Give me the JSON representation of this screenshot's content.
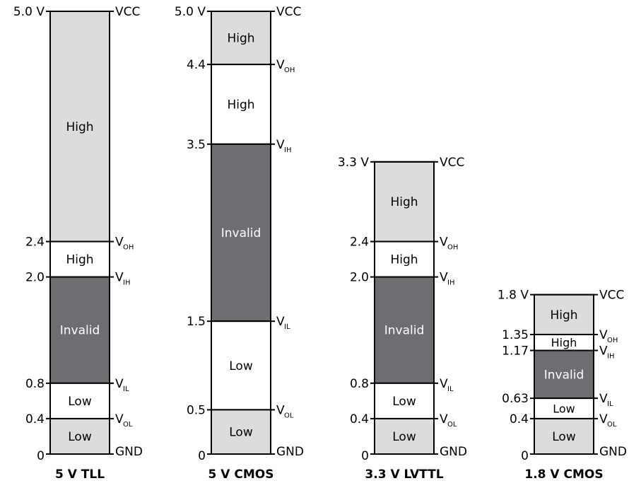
{
  "colors": {
    "high": "#dcdcde",
    "invalid": "#6d6e71",
    "low": "#ffffff",
    "stroke": "#000000",
    "invalid_text": "#ffffff"
  },
  "columns": [
    {
      "title": "5 V TLL",
      "top_label": "5.0 V",
      "bottom_label": "0",
      "vcc_label": "VCC",
      "gnd_label": "GND",
      "max_v": 5.0,
      "segments": [
        {
          "from": 2.4,
          "to": 5.0,
          "label": "High",
          "kind": "high"
        },
        {
          "from": 2.0,
          "to": 2.4,
          "label": "High",
          "kind": "low"
        },
        {
          "from": 0.8,
          "to": 2.0,
          "label": "Invalid",
          "kind": "invalid"
        },
        {
          "from": 0.4,
          "to": 0.8,
          "label": "Low",
          "kind": "low"
        },
        {
          "from": 0.0,
          "to": 0.4,
          "label": "Low",
          "kind": "high"
        }
      ],
      "thresholds": [
        {
          "v": 2.4,
          "left": "2.4",
          "main": "V",
          "sub": "OH"
        },
        {
          "v": 2.0,
          "left": "2.0",
          "main": "V",
          "sub": "IH"
        },
        {
          "v": 0.8,
          "left": "0.8",
          "main": "V",
          "sub": "IL"
        },
        {
          "v": 0.4,
          "left": "0.4",
          "main": "V",
          "sub": "OL"
        }
      ]
    },
    {
      "title": "5 V CMOS",
      "top_label": "5.0 V",
      "bottom_label": "0",
      "vcc_label": "VCC",
      "gnd_label": "GND",
      "max_v": 5.0,
      "segments": [
        {
          "from": 4.4,
          "to": 5.0,
          "label": "High",
          "kind": "high"
        },
        {
          "from": 3.5,
          "to": 4.4,
          "label": "High",
          "kind": "low"
        },
        {
          "from": 1.5,
          "to": 3.5,
          "label": "Invalid",
          "kind": "invalid"
        },
        {
          "from": 0.5,
          "to": 1.5,
          "label": "Low",
          "kind": "low"
        },
        {
          "from": 0.0,
          "to": 0.5,
          "label": "Low",
          "kind": "high"
        }
      ],
      "thresholds": [
        {
          "v": 4.4,
          "left": "4.4",
          "main": "V",
          "sub": "OH"
        },
        {
          "v": 3.5,
          "left": "3.5",
          "main": "V",
          "sub": "IH"
        },
        {
          "v": 1.5,
          "left": "1.5",
          "main": "V",
          "sub": "IL"
        },
        {
          "v": 0.5,
          "left": "0.5",
          "main": "V",
          "sub": "OL"
        }
      ]
    },
    {
      "title": "3.3 V LVTTL",
      "top_label": "3.3 V",
      "bottom_label": "0",
      "vcc_label": "VCC",
      "gnd_label": "GND",
      "max_v": 3.3,
      "segments": [
        {
          "from": 2.4,
          "to": 3.3,
          "label": "High",
          "kind": "high"
        },
        {
          "from": 2.0,
          "to": 2.4,
          "label": "High",
          "kind": "low"
        },
        {
          "from": 0.8,
          "to": 2.0,
          "label": "Invalid",
          "kind": "invalid"
        },
        {
          "from": 0.4,
          "to": 0.8,
          "label": "Low",
          "kind": "low"
        },
        {
          "from": 0.0,
          "to": 0.4,
          "label": "Low",
          "kind": "high"
        }
      ],
      "thresholds": [
        {
          "v": 2.4,
          "left": "2.4",
          "main": "V",
          "sub": "OH"
        },
        {
          "v": 2.0,
          "left": "2.0",
          "main": "V",
          "sub": "IH"
        },
        {
          "v": 0.8,
          "left": "0.8",
          "main": "V",
          "sub": "IL"
        },
        {
          "v": 0.4,
          "left": "0.4",
          "main": "V",
          "sub": "OL"
        }
      ]
    },
    {
      "title": "1.8 V CMOS",
      "top_label": "1.8 V",
      "bottom_label": "0",
      "vcc_label": "VCC",
      "gnd_label": "GND",
      "max_v": 1.8,
      "segments": [
        {
          "from": 1.35,
          "to": 1.8,
          "label": "High",
          "kind": "high"
        },
        {
          "from": 1.17,
          "to": 1.35,
          "label": "High",
          "kind": "low"
        },
        {
          "from": 0.63,
          "to": 1.17,
          "label": "Invalid",
          "kind": "invalid"
        },
        {
          "from": 0.4,
          "to": 0.63,
          "label": "Low",
          "kind": "low"
        },
        {
          "from": 0.0,
          "to": 0.4,
          "label": "Low",
          "kind": "high"
        }
      ],
      "thresholds": [
        {
          "v": 1.35,
          "left": "1.35",
          "main": "V",
          "sub": "OH"
        },
        {
          "v": 1.17,
          "left": "1.17",
          "main": "V",
          "sub": "IH"
        },
        {
          "v": 0.63,
          "left": "0.63",
          "main": "V",
          "sub": "IL"
        },
        {
          "v": 0.4,
          "left": "0.4",
          "main": "V",
          "sub": "OL"
        }
      ]
    }
  ]
}
